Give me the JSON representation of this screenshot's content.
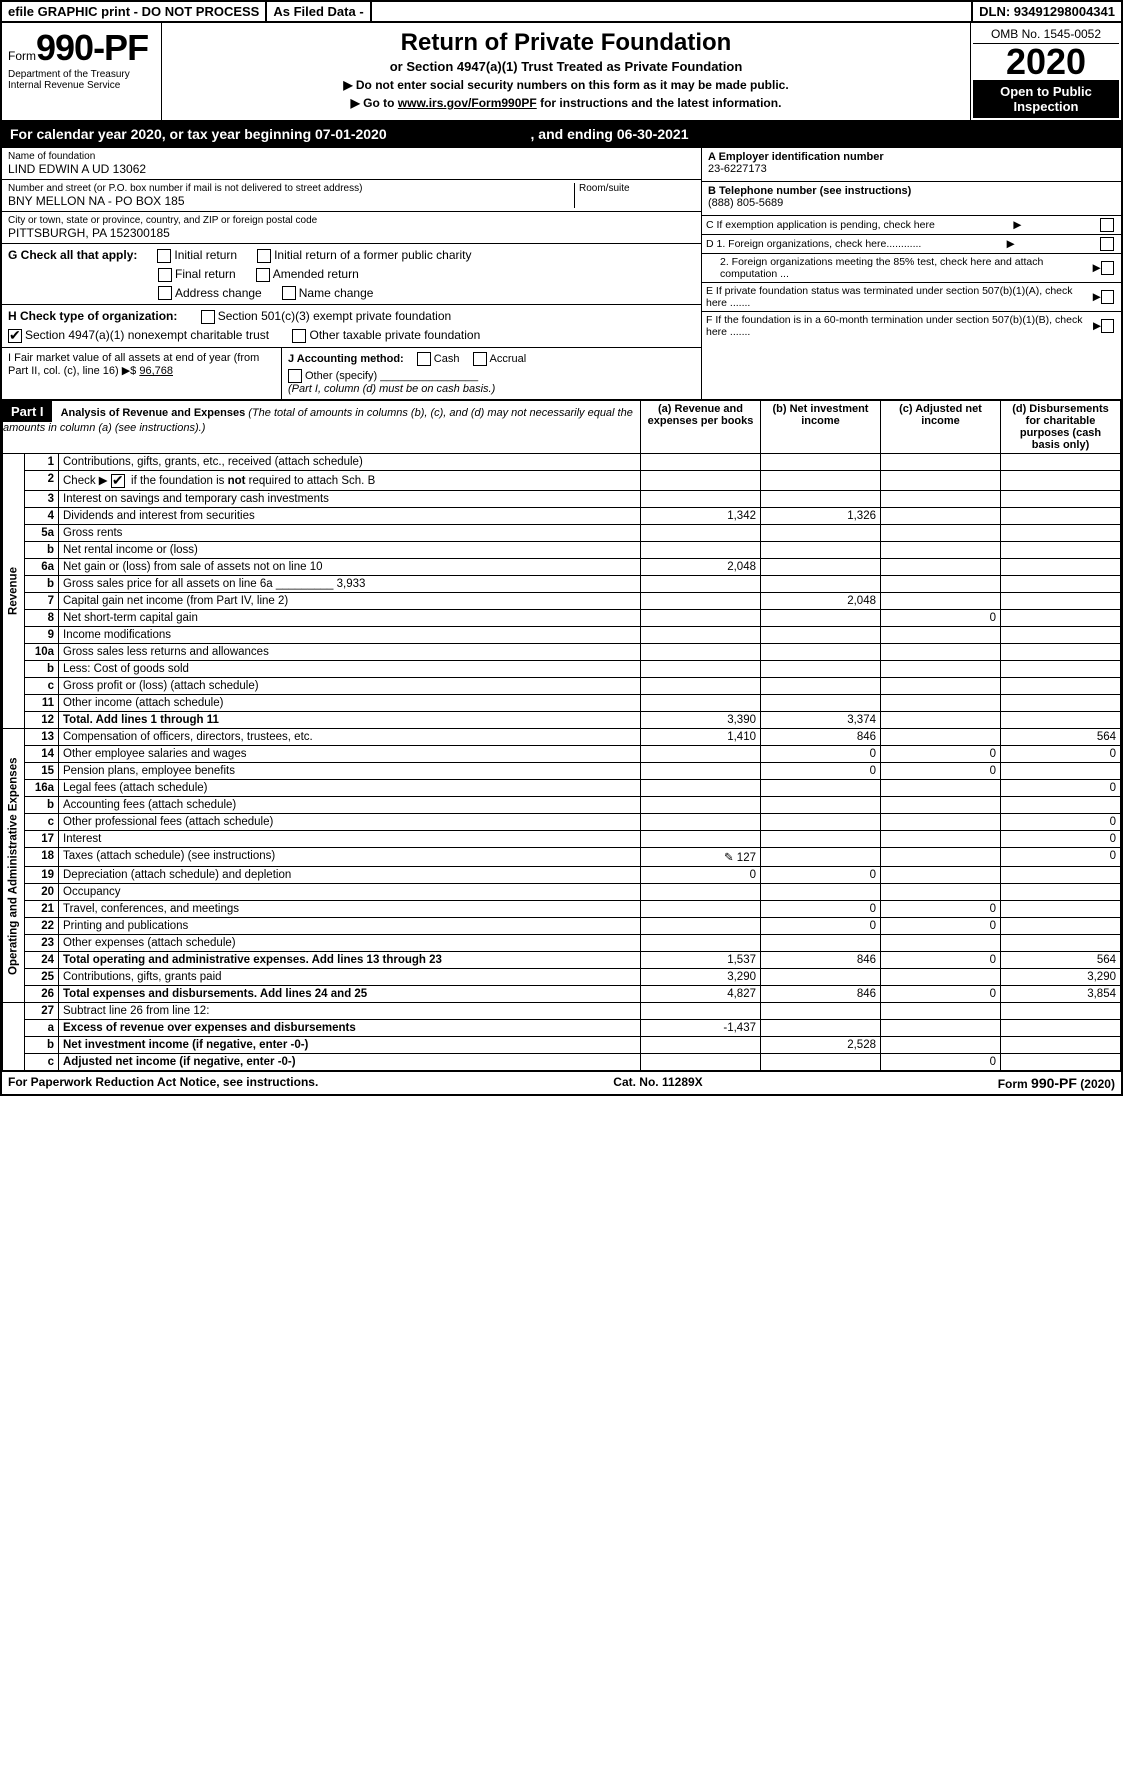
{
  "topbar": {
    "efile": "efile GRAPHIC print - DO NOT PROCESS",
    "asfiled": "As Filed Data -",
    "dln": "DLN: 93491298004341"
  },
  "header": {
    "form_prefix": "Form",
    "form_number": "990-PF",
    "dept1": "Department of the Treasury",
    "dept2": "Internal Revenue Service",
    "title": "Return of Private Foundation",
    "subtitle": "or Section 4947(a)(1) Trust Treated as Private Foundation",
    "instr1": "▶ Do not enter social security numbers on this form as it may be made public.",
    "instr2_pre": "▶ Go to ",
    "instr2_link": "www.irs.gov/Form990PF",
    "instr2_post": " for instructions and the latest information.",
    "omb": "OMB No. 1545-0052",
    "year": "2020",
    "open_public": "Open to Public Inspection"
  },
  "calyear": {
    "text_pre": "For calendar year 2020, or tax year beginning ",
    "begin": "07-01-2020",
    "text_mid": ", and ending ",
    "end": "06-30-2021"
  },
  "entity": {
    "name_lbl": "Name of foundation",
    "name": "LIND EDWIN A UD 13062",
    "addr_lbl": "Number and street (or P.O. box number if mail is not delivered to street address)",
    "addr": "BNY MELLON NA - PO BOX 185",
    "room_lbl": "Room/suite",
    "city_lbl": "City or town, state or province, country, and ZIP or foreign postal code",
    "city": "PITTSBURGH, PA  152300185",
    "A_lbl": "A Employer identification number",
    "A_val": "23-6227173",
    "B_lbl": "B Telephone number (see instructions)",
    "B_val": "(888) 805-5689",
    "C_lbl": "C If exemption application is pending, check here",
    "D1": "D 1. Foreign organizations, check here............",
    "D2": "2. Foreign organizations meeting the 85% test, check here and attach computation ...",
    "E": "E  If private foundation status was terminated under section 507(b)(1)(A), check here .......",
    "F": "F  If the foundation is in a 60-month termination under section 507(b)(1)(B), check here ......."
  },
  "G": {
    "label": "G Check all that apply:",
    "opts": [
      "Initial return",
      "Initial return of a former public charity",
      "Final return",
      "Amended return",
      "Address change",
      "Name change"
    ]
  },
  "H": {
    "label": "H Check type of organization:",
    "opt1": "Section 501(c)(3) exempt private foundation",
    "opt2": "Section 4947(a)(1) nonexempt charitable trust",
    "opt3": "Other taxable private foundation"
  },
  "I": {
    "label": "I Fair market value of all assets at end of year (from Part II, col. (c), line 16) ▶$",
    "val": "96,768"
  },
  "J": {
    "label": "J Accounting method:",
    "opts": [
      "Cash",
      "Accrual",
      "Other (specify)"
    ],
    "note": "(Part I, column (d) must be on cash basis.)"
  },
  "part1": {
    "label": "Part I",
    "title": "Analysis of Revenue and Expenses",
    "title_note": "(The total of amounts in columns (b), (c), and (d) may not necessarily equal the amounts in column (a) (see instructions).)",
    "col_a": "(a) Revenue and expenses per books",
    "col_b": "(b) Net investment income",
    "col_c": "(c) Adjusted net income",
    "col_d": "(d) Disbursements for charitable purposes (cash basis only)",
    "revenue_label": "Revenue",
    "expenses_label": "Operating and Administrative Expenses"
  },
  "rows": [
    {
      "n": "1",
      "d": "Contributions, gifts, grants, etc., received (attach schedule)",
      "a": "",
      "b": "",
      "c": "",
      "e": ""
    },
    {
      "n": "2",
      "d": "Check ▶ ☑ if the foundation is not required to attach Sch. B",
      "a": "",
      "b": "",
      "c": "",
      "e": ""
    },
    {
      "n": "3",
      "d": "Interest on savings and temporary cash investments",
      "a": "",
      "b": "",
      "c": "",
      "e": ""
    },
    {
      "n": "4",
      "d": "Dividends and interest from securities",
      "a": "1,342",
      "b": "1,326",
      "c": "",
      "e": ""
    },
    {
      "n": "5a",
      "d": "Gross rents",
      "a": "",
      "b": "",
      "c": "",
      "e": ""
    },
    {
      "n": "b",
      "d": "Net rental income or (loss)",
      "a": "",
      "b": "",
      "c": "",
      "e": ""
    },
    {
      "n": "6a",
      "d": "Net gain or (loss) from sale of assets not on line 10",
      "a": "2,048",
      "b": "",
      "c": "",
      "e": ""
    },
    {
      "n": "b",
      "d": "Gross sales price for all assets on line 6a _________ 3,933",
      "a": "",
      "b": "",
      "c": "",
      "e": ""
    },
    {
      "n": "7",
      "d": "Capital gain net income (from Part IV, line 2)",
      "a": "",
      "b": "2,048",
      "c": "",
      "e": ""
    },
    {
      "n": "8",
      "d": "Net short-term capital gain",
      "a": "",
      "b": "",
      "c": "0",
      "e": ""
    },
    {
      "n": "9",
      "d": "Income modifications",
      "a": "",
      "b": "",
      "c": "",
      "e": ""
    },
    {
      "n": "10a",
      "d": "Gross sales less returns and allowances",
      "a": "",
      "b": "",
      "c": "",
      "e": ""
    },
    {
      "n": "b",
      "d": "Less: Cost of goods sold",
      "a": "",
      "b": "",
      "c": "",
      "e": ""
    },
    {
      "n": "c",
      "d": "Gross profit or (loss) (attach schedule)",
      "a": "",
      "b": "",
      "c": "",
      "e": ""
    },
    {
      "n": "11",
      "d": "Other income (attach schedule)",
      "a": "",
      "b": "",
      "c": "",
      "e": ""
    },
    {
      "n": "12",
      "d": "Total. Add lines 1 through 11",
      "a": "3,390",
      "b": "3,374",
      "c": "",
      "e": "",
      "bold": true
    }
  ],
  "exp_rows": [
    {
      "n": "13",
      "d": "Compensation of officers, directors, trustees, etc.",
      "a": "1,410",
      "b": "846",
      "c": "",
      "e": "564"
    },
    {
      "n": "14",
      "d": "Other employee salaries and wages",
      "a": "",
      "b": "0",
      "c": "0",
      "e": "0"
    },
    {
      "n": "15",
      "d": "Pension plans, employee benefits",
      "a": "",
      "b": "0",
      "c": "0",
      "e": ""
    },
    {
      "n": "16a",
      "d": "Legal fees (attach schedule)",
      "a": "",
      "b": "",
      "c": "",
      "e": "0"
    },
    {
      "n": "b",
      "d": "Accounting fees (attach schedule)",
      "a": "",
      "b": "",
      "c": "",
      "e": ""
    },
    {
      "n": "c",
      "d": "Other professional fees (attach schedule)",
      "a": "",
      "b": "",
      "c": "",
      "e": "0"
    },
    {
      "n": "17",
      "d": "Interest",
      "a": "",
      "b": "",
      "c": "",
      "e": "0"
    },
    {
      "n": "18",
      "d": "Taxes (attach schedule) (see instructions)",
      "a": "127",
      "b": "",
      "c": "",
      "e": "0",
      "icon": true
    },
    {
      "n": "19",
      "d": "Depreciation (attach schedule) and depletion",
      "a": "0",
      "b": "0",
      "c": "",
      "e": ""
    },
    {
      "n": "20",
      "d": "Occupancy",
      "a": "",
      "b": "",
      "c": "",
      "e": ""
    },
    {
      "n": "21",
      "d": "Travel, conferences, and meetings",
      "a": "",
      "b": "0",
      "c": "0",
      "e": ""
    },
    {
      "n": "22",
      "d": "Printing and publications",
      "a": "",
      "b": "0",
      "c": "0",
      "e": ""
    },
    {
      "n": "23",
      "d": "Other expenses (attach schedule)",
      "a": "",
      "b": "",
      "c": "",
      "e": ""
    },
    {
      "n": "24",
      "d": "Total operating and administrative expenses. Add lines 13 through 23",
      "a": "1,537",
      "b": "846",
      "c": "0",
      "e": "564",
      "bold": true
    },
    {
      "n": "25",
      "d": "Contributions, gifts, grants paid",
      "a": "3,290",
      "b": "",
      "c": "",
      "e": "3,290"
    },
    {
      "n": "26",
      "d": "Total expenses and disbursements. Add lines 24 and 25",
      "a": "4,827",
      "b": "846",
      "c": "0",
      "e": "3,854",
      "bold": true
    }
  ],
  "bottom_rows": [
    {
      "n": "27",
      "d": "Subtract line 26 from line 12:",
      "a": "",
      "b": "",
      "c": "",
      "e": ""
    },
    {
      "n": "a",
      "d": "Excess of revenue over expenses and disbursements",
      "a": "-1,437",
      "b": "",
      "c": "",
      "e": "",
      "bold": true
    },
    {
      "n": "b",
      "d": "Net investment income (if negative, enter -0-)",
      "a": "",
      "b": "2,528",
      "c": "",
      "e": "",
      "bold": true
    },
    {
      "n": "c",
      "d": "Adjusted net income (if negative, enter -0-)",
      "a": "",
      "b": "",
      "c": "0",
      "e": "",
      "bold": true
    }
  ],
  "footer": {
    "left": "For Paperwork Reduction Act Notice, see instructions.",
    "mid": "Cat. No. 11289X",
    "right": "Form 990-PF (2020)"
  }
}
